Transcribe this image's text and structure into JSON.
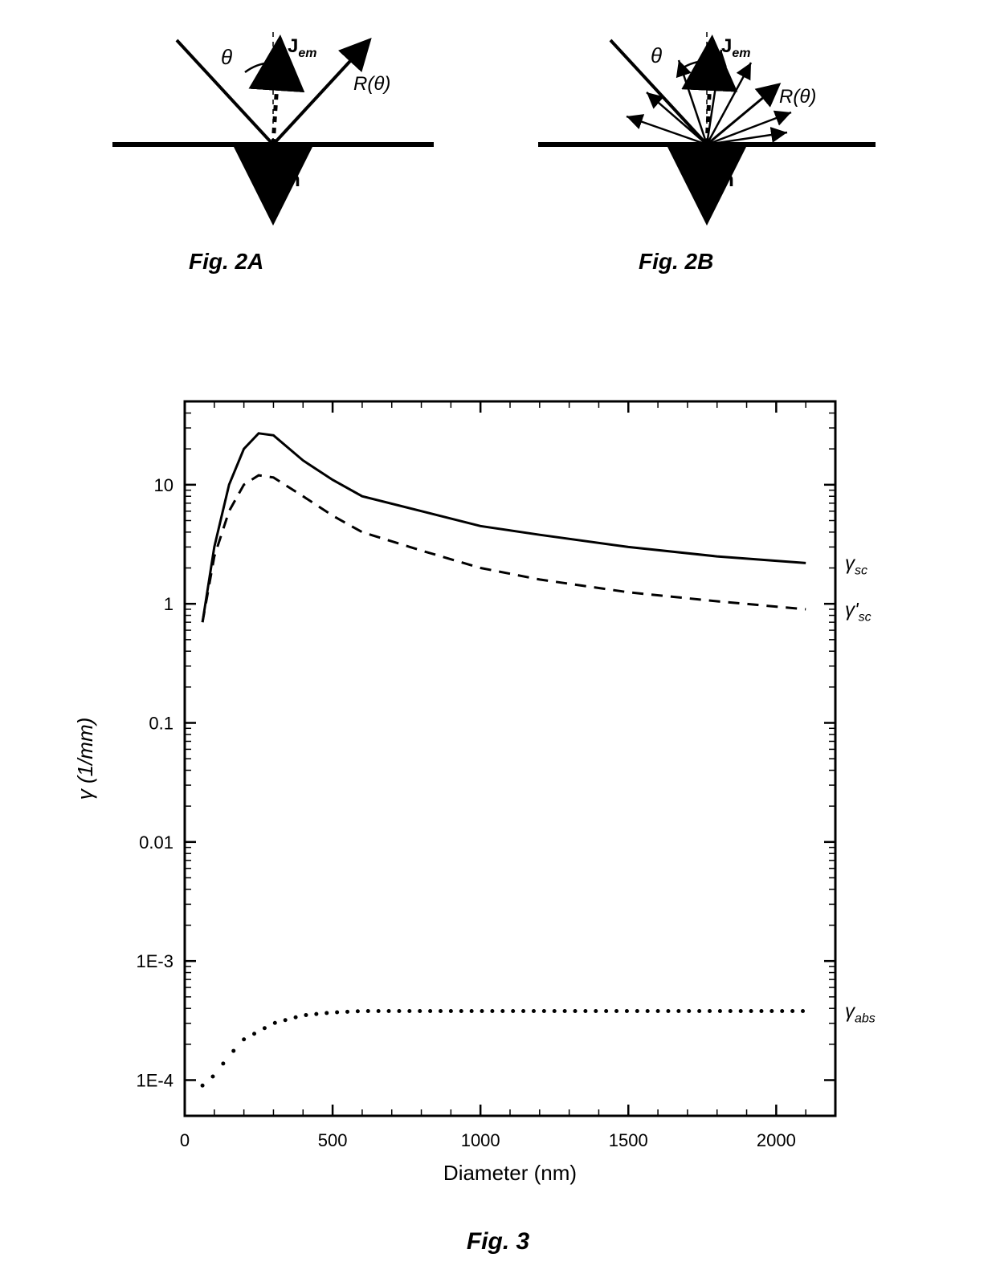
{
  "fig2a": {
    "caption": "Fig. 2A",
    "theta_label": "θ",
    "jem_label": "Jₑₘ",
    "r_label": "R(θ)",
    "n_label": "n̂",
    "line_color": "#000000",
    "surface_color": "#000000",
    "jem_dash": "6,6",
    "font_size_label": 22,
    "font_size_theta": 24
  },
  "fig2b": {
    "caption": "Fig. 2B",
    "theta_label": "θ",
    "jem_label": "Jₑₘ",
    "r_label": "R(θ)",
    "n_label": "n̂",
    "line_color": "#000000",
    "surface_color": "#000000",
    "jem_dash": "6,6",
    "font_size_label": 22,
    "font_size_theta": 24
  },
  "fig3": {
    "caption": "Fig. 3",
    "chart": {
      "type": "line-log",
      "xlabel": "Diameter (nm)",
      "ylabel": "γ (1/mm)",
      "label_fontsize": 26,
      "tick_fontsize": 22,
      "xlim": [
        0,
        2200
      ],
      "xticks": [
        0,
        500,
        1000,
        1500,
        2000
      ],
      "ylim_log": [
        -4.3,
        1.7
      ],
      "yticks": [
        {
          "exp": -4,
          "label": "1E-4"
        },
        {
          "exp": -3,
          "label": "1E-3"
        },
        {
          "exp": -2,
          "label": "0.01"
        },
        {
          "exp": -1,
          "label": "0.1"
        },
        {
          "exp": 0,
          "label": "1"
        },
        {
          "exp": 1,
          "label": "10"
        }
      ],
      "background_color": "#ffffff",
      "axis_color": "#000000",
      "axis_width": 3,
      "series": [
        {
          "name": "gamma_sc",
          "label": "γsc",
          "label_html": "γ<sub>sc</sub>",
          "stroke": "#000000",
          "stroke_width": 3,
          "dash": "",
          "points": [
            [
              60,
              0.7
            ],
            [
              100,
              3
            ],
            [
              150,
              10
            ],
            [
              200,
              20
            ],
            [
              250,
              27
            ],
            [
              300,
              26
            ],
            [
              400,
              16
            ],
            [
              500,
              11
            ],
            [
              600,
              8
            ],
            [
              800,
              6
            ],
            [
              1000,
              4.5
            ],
            [
              1200,
              3.8
            ],
            [
              1500,
              3.0
            ],
            [
              1800,
              2.5
            ],
            [
              2100,
              2.2
            ]
          ]
        },
        {
          "name": "gamma_sc_prime",
          "label": "γ'sc",
          "label_html": "γ'<sub>sc</sub>",
          "stroke": "#000000",
          "stroke_width": 3,
          "dash": "14,10",
          "points": [
            [
              60,
              0.7
            ],
            [
              100,
              2.5
            ],
            [
              150,
              6
            ],
            [
              200,
              10
            ],
            [
              250,
              12
            ],
            [
              300,
              11.5
            ],
            [
              400,
              8
            ],
            [
              500,
              5.5
            ],
            [
              600,
              4
            ],
            [
              800,
              2.8
            ],
            [
              1000,
              2.0
            ],
            [
              1200,
              1.6
            ],
            [
              1500,
              1.25
            ],
            [
              1800,
              1.05
            ],
            [
              2100,
              0.9
            ]
          ]
        },
        {
          "name": "gamma_abs",
          "label": "γabs",
          "label_html": "γ<sub>abs</sub>",
          "stroke": "#000000",
          "stroke_width": 0,
          "dash": "dots",
          "marker_radius": 2.5,
          "points": [
            [
              60,
              9e-05
            ],
            [
              100,
              0.00011
            ],
            [
              150,
              0.00016
            ],
            [
              200,
              0.00022
            ],
            [
              300,
              0.0003
            ],
            [
              400,
              0.00035
            ],
            [
              500,
              0.00037
            ],
            [
              600,
              0.00038
            ],
            [
              800,
              0.00038
            ],
            [
              1000,
              0.00038
            ],
            [
              1200,
              0.00038
            ],
            [
              1500,
              0.00038
            ],
            [
              1800,
              0.00038
            ],
            [
              2100,
              0.00038
            ]
          ]
        }
      ],
      "series_labels": [
        {
          "text": "γ",
          "sub": "sc",
          "x": 2150,
          "y_exp": 0.34
        },
        {
          "text": "γ'",
          "sub": "sc",
          "x": 2150,
          "y_exp": -0.05
        },
        {
          "text": "γ",
          "sub": "abs",
          "x": 2150,
          "y_exp": -3.42
        }
      ]
    }
  }
}
